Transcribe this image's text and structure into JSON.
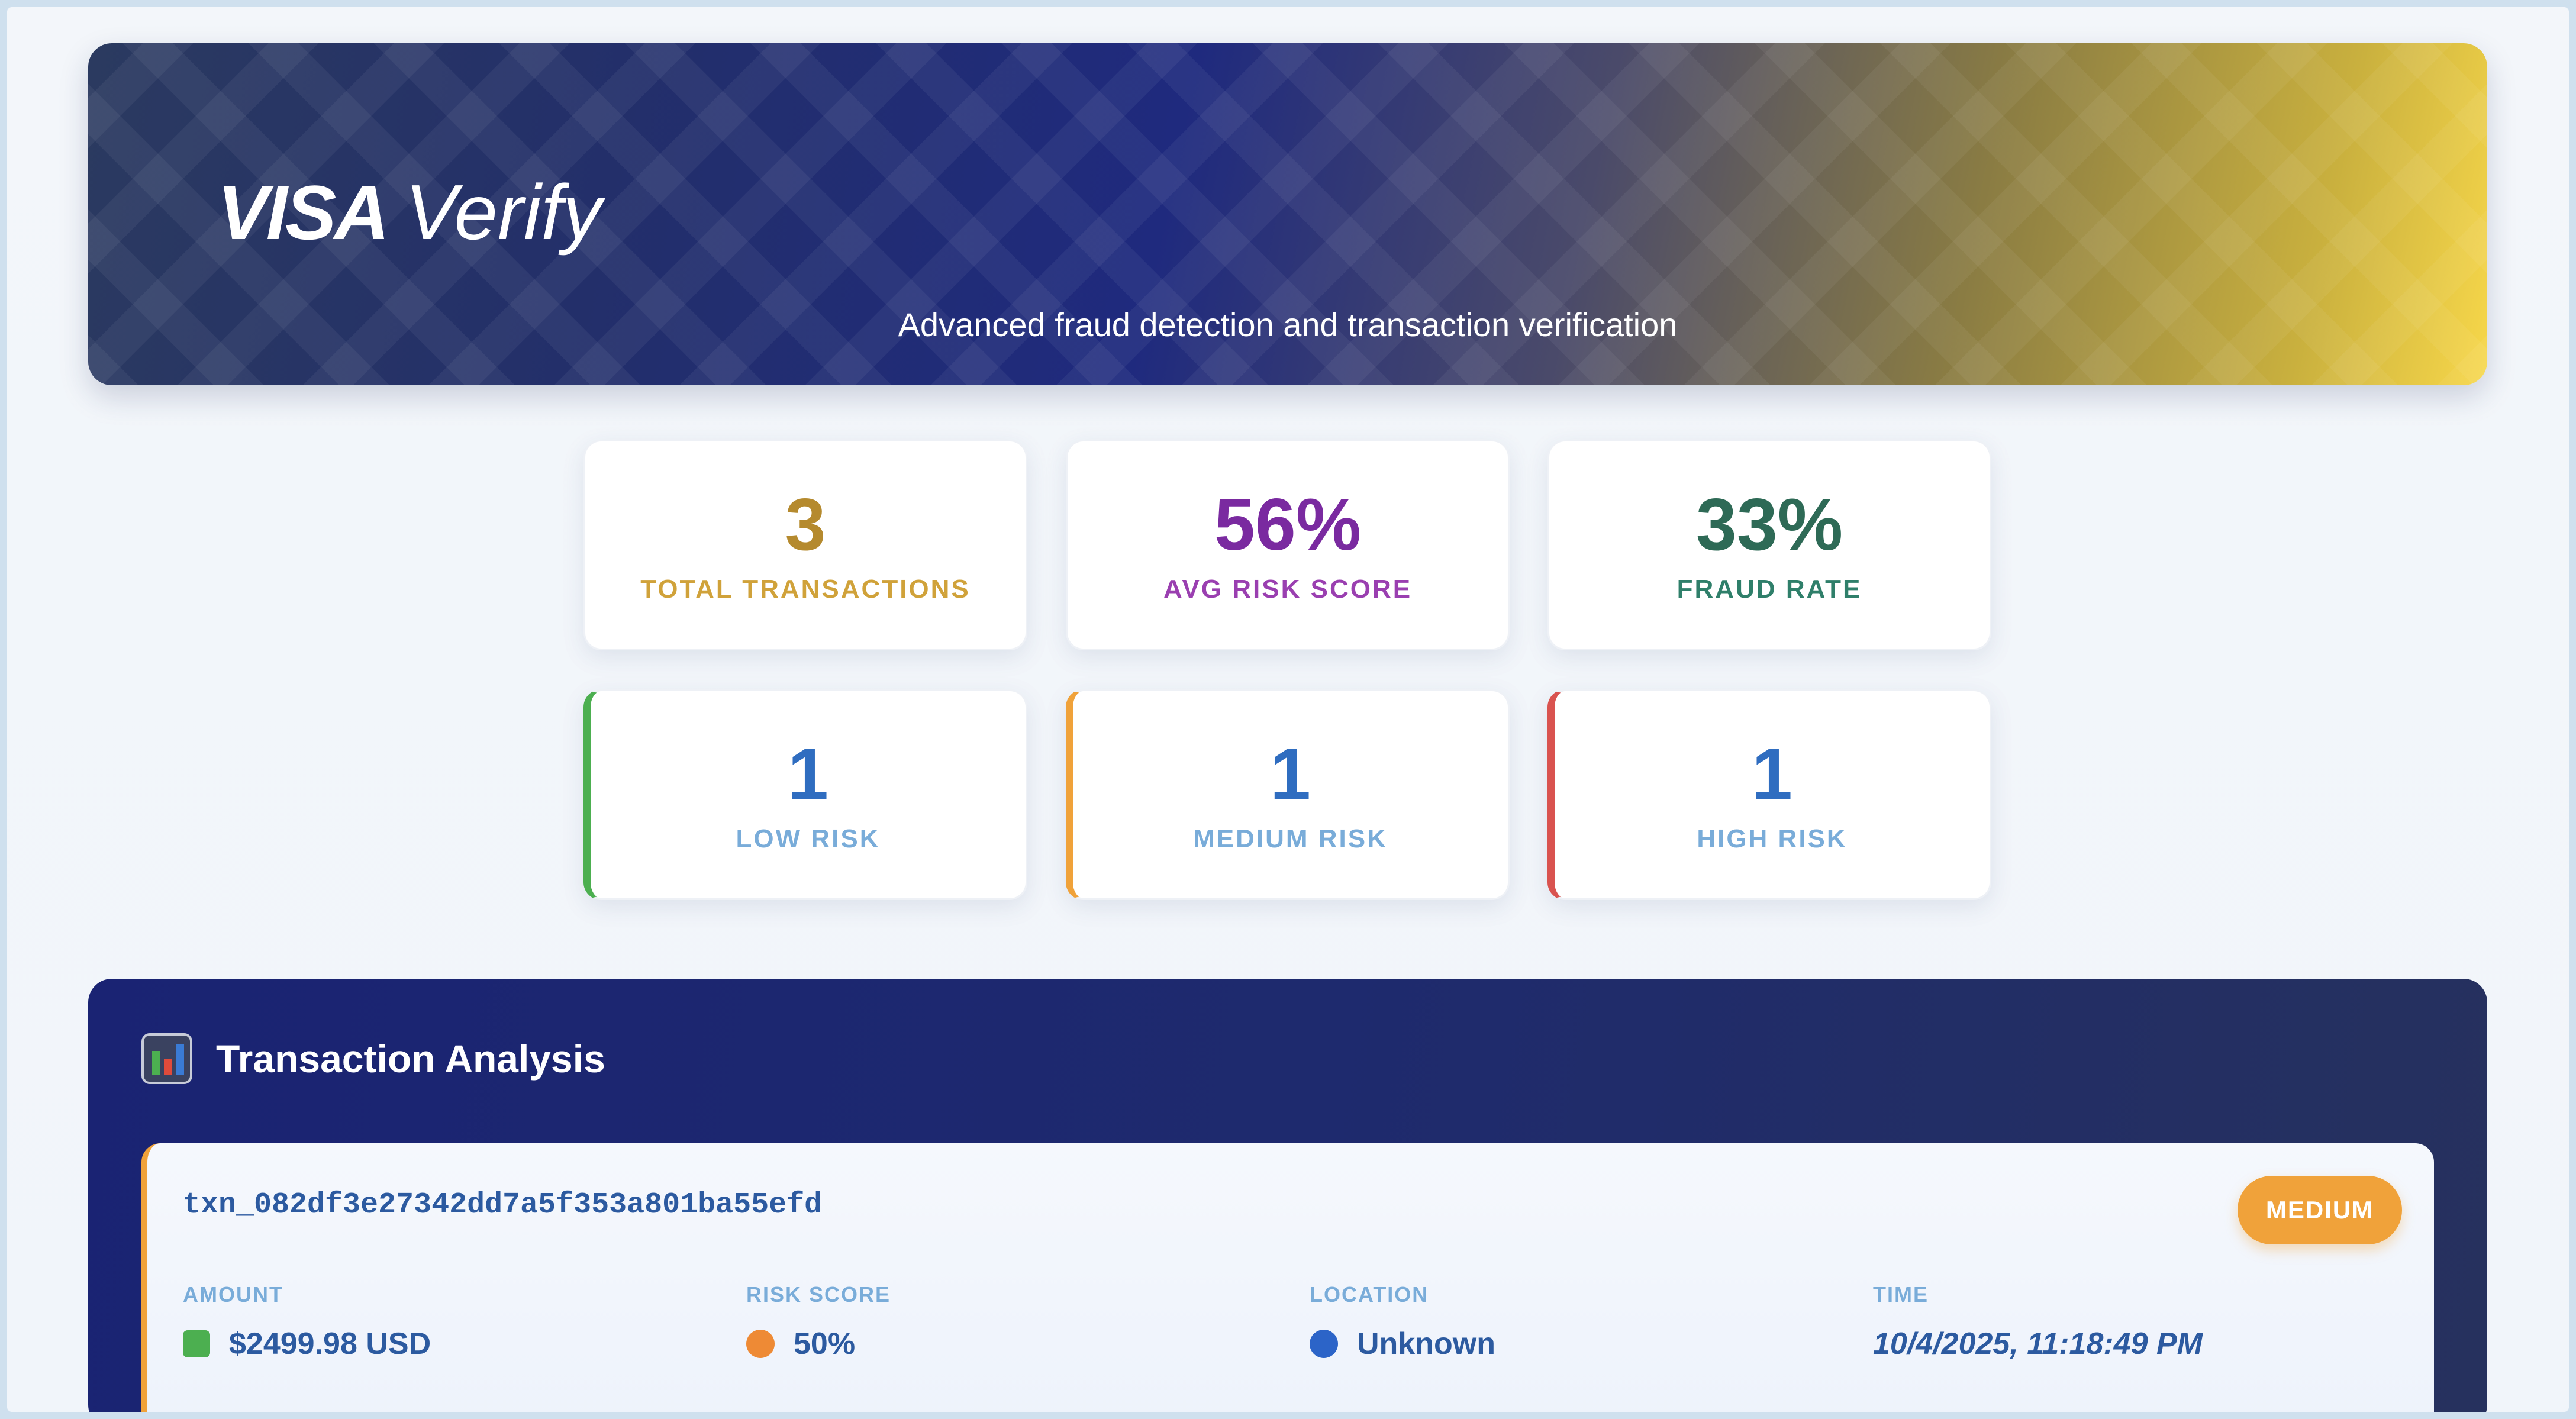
{
  "header": {
    "logo_brand": "VISA",
    "logo_product": "Verify",
    "subtitle": "Advanced fraud detection and transaction verification"
  },
  "stats": {
    "total_transactions": {
      "value": "3",
      "label": "TOTAL TRANSACTIONS",
      "color": "#b58a2e"
    },
    "avg_risk_score": {
      "value": "56%",
      "label": "AVG RISK SCORE",
      "color": "#7a2aa0"
    },
    "fraud_rate": {
      "value": "33%",
      "label": "FRAUD RATE",
      "color": "#2e6a56"
    }
  },
  "risk_breakdown": {
    "low": {
      "value": "1",
      "label": "LOW RISK",
      "color": "#4caf50"
    },
    "medium": {
      "value": "1",
      "label": "MEDIUM RISK",
      "color": "#f0a23a"
    },
    "high": {
      "value": "1",
      "label": "HIGH RISK",
      "color": "#d9534f"
    }
  },
  "analysis": {
    "title": "Transaction Analysis",
    "icon": "bar-chart-icon",
    "transactions": [
      {
        "id": "txn_082df3e27342dd7a5f353a801ba55efd",
        "risk_badge": "MEDIUM",
        "amount_label": "AMOUNT",
        "amount_value": "$2499.98 USD",
        "risk_label": "RISK SCORE",
        "risk_value": "50%",
        "location_label": "LOCATION",
        "location_value": "Unknown",
        "time_label": "TIME",
        "time_value": "10/4/2025, 11:18:49 PM"
      }
    ]
  }
}
